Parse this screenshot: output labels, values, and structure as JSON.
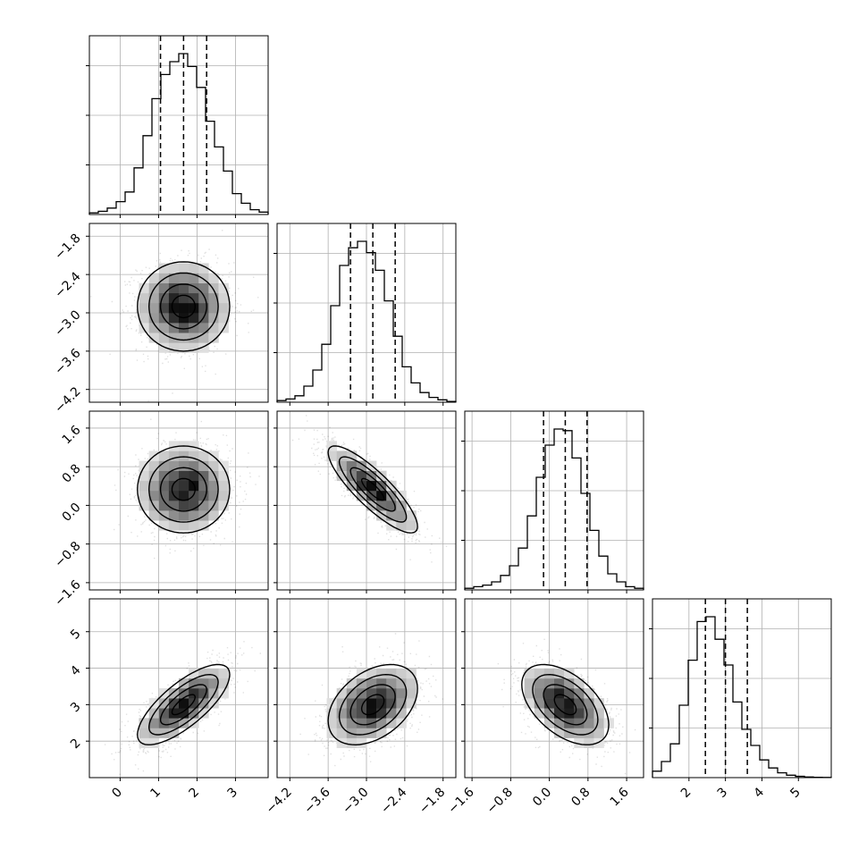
{
  "chart_data": {
    "type": "corner",
    "parameters": [
      {
        "range": [
          -0.8,
          3.85
        ],
        "ticks": [
          0,
          1,
          2,
          3
        ],
        "tick_labels": [
          "0",
          "1",
          "2",
          "3"
        ],
        "quantiles": [
          1.05,
          1.65,
          2.25
        ],
        "histogram": [
          0.01,
          0.02,
          0.04,
          0.08,
          0.14,
          0.29,
          0.49,
          0.72,
          0.87,
          0.95,
          1.0,
          0.92,
          0.79,
          0.58,
          0.42,
          0.27,
          0.13,
          0.07,
          0.03,
          0.015
        ]
      },
      {
        "range": [
          -4.4,
          -1.6
        ],
        "ticks": [
          -4.2,
          -3.6,
          -3.0,
          -2.4,
          -1.8
        ],
        "tick_labels": [
          "−4.2",
          "−3.6",
          "−3.0",
          "−2.4",
          "−1.8"
        ],
        "quantiles": [
          -3.25,
          -2.9,
          -2.55
        ],
        "histogram": [
          0.01,
          0.02,
          0.04,
          0.1,
          0.2,
          0.36,
          0.6,
          0.85,
          0.96,
          1.0,
          0.93,
          0.82,
          0.63,
          0.41,
          0.22,
          0.12,
          0.06,
          0.03,
          0.015,
          0.005
        ]
      },
      {
        "range": [
          -1.75,
          1.95
        ],
        "ticks": [
          -1.6,
          -0.8,
          0.0,
          0.8,
          1.6
        ],
        "tick_labels": [
          "−1.6",
          "−0.8",
          "0.0",
          "0.8",
          "1.6"
        ],
        "quantiles": [
          -0.12,
          0.33,
          0.78
        ],
        "histogram": [
          0.01,
          0.02,
          0.03,
          0.05,
          0.09,
          0.15,
          0.26,
          0.46,
          0.7,
          0.9,
          1.0,
          0.99,
          0.82,
          0.6,
          0.37,
          0.21,
          0.1,
          0.05,
          0.02,
          0.01
        ]
      },
      {
        "range": [
          1.0,
          5.9
        ],
        "ticks": [
          2,
          3,
          4,
          5
        ],
        "tick_labels": [
          "2",
          "3",
          "4",
          "5"
        ],
        "quantiles": [
          2.45,
          3.0,
          3.6
        ],
        "histogram": [
          0.04,
          0.1,
          0.21,
          0.45,
          0.73,
          0.97,
          1.0,
          0.86,
          0.7,
          0.47,
          0.3,
          0.2,
          0.11,
          0.06,
          0.03,
          0.015,
          0.008,
          0.004,
          0.002,
          0.001
        ]
      }
    ],
    "pairs": [
      {
        "row": 1,
        "col": 0,
        "center": [
          1.65,
          -2.9
        ],
        "sd": [
          0.6,
          0.35
        ],
        "rho": 0.0
      },
      {
        "row": 2,
        "col": 0,
        "center": [
          1.65,
          0.33
        ],
        "sd": [
          0.6,
          0.45
        ],
        "rho": 0.0
      },
      {
        "row": 2,
        "col": 1,
        "center": [
          -2.9,
          0.33
        ],
        "sd": [
          0.35,
          0.45
        ],
        "rho": -0.85
      },
      {
        "row": 3,
        "col": 0,
        "center": [
          1.65,
          3.0
        ],
        "sd": [
          0.6,
          0.55
        ],
        "rho": 0.75
      },
      {
        "row": 3,
        "col": 1,
        "center": [
          -2.9,
          3.0
        ],
        "sd": [
          0.35,
          0.55
        ],
        "rho": 0.4
      },
      {
        "row": 3,
        "col": 2,
        "center": [
          0.33,
          3.0
        ],
        "sd": [
          0.45,
          0.55
        ],
        "rho": -0.5
      }
    ],
    "contour_levels_sigma": [
      0.5,
      1.0,
      1.5,
      2.0
    ],
    "grid": true,
    "colors": {
      "line": "#000000",
      "grid": "#b0b0b0",
      "points": "#000000",
      "density": "#000000"
    }
  }
}
